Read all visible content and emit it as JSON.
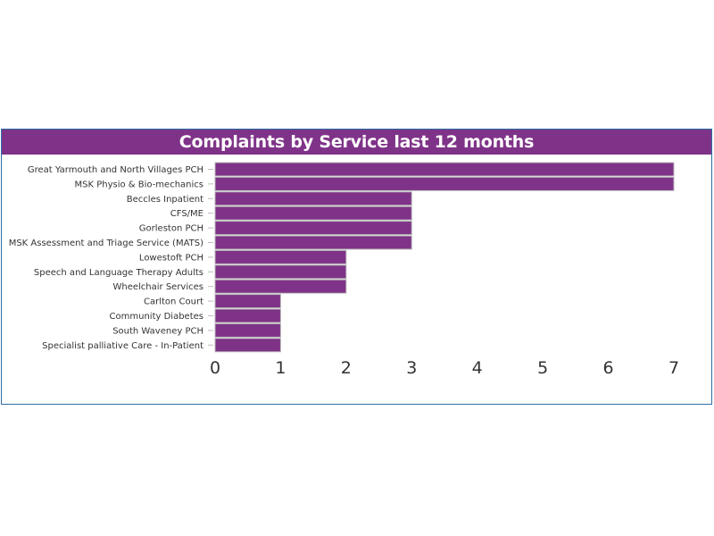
{
  "chart_data": {
    "type": "bar",
    "orientation": "horizontal",
    "title": "Complaints by Service last 12 months",
    "categories": [
      "Great Yarmouth and North Villages PCH",
      "MSK Physio & Bio-mechanics",
      "Beccles Inpatient",
      "CFS/ME",
      "Gorleston PCH",
      "MSK Assessment and Triage Service (MATS)",
      "Lowestoft PCH",
      "Speech and Language Therapy Adults",
      "Wheelchair Services",
      "Carlton Court",
      "Community Diabetes",
      "South Waveney PCH",
      "Specialist palliative Care - In-Patient"
    ],
    "values": [
      7,
      7,
      3,
      3,
      3,
      3,
      2,
      2,
      2,
      1,
      1,
      1,
      1
    ],
    "xlim": [
      0,
      7
    ],
    "xticks": [
      "0",
      "1",
      "2",
      "3",
      "4",
      "5",
      "6",
      "7"
    ],
    "xlabel": "",
    "ylabel": "",
    "grid": false,
    "bar_color": "#7f3388",
    "bar_edge_color": "#b9b9b9",
    "title_background": "#7f3388",
    "title_color": "#ffffff",
    "border_color": "#2f6fa6"
  }
}
